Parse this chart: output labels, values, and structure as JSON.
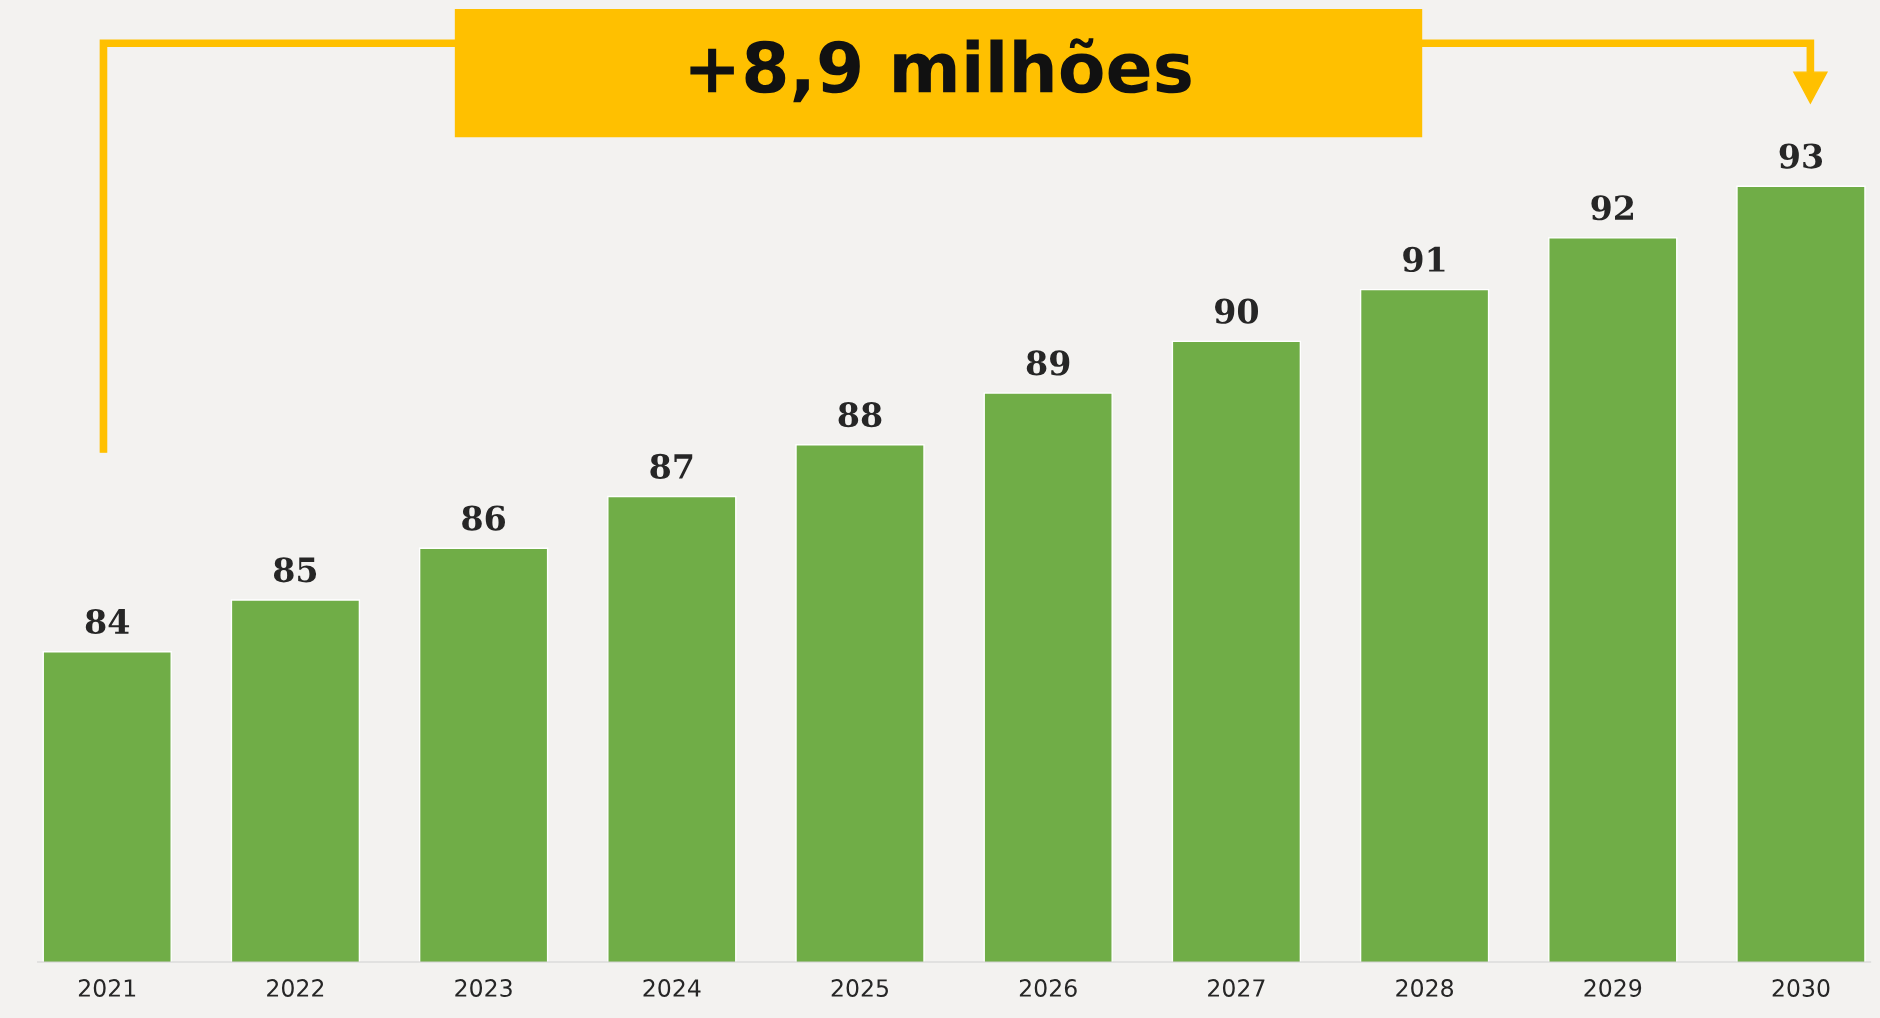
{
  "chart_data": {
    "type": "bar",
    "categories": [
      "2021",
      "2022",
      "2023",
      "2024",
      "2025",
      "2026",
      "2027",
      "2028",
      "2029",
      "2030"
    ],
    "values": [
      84,
      85,
      86,
      87,
      88,
      89,
      90,
      91,
      92,
      93
    ],
    "color": "#70ad47",
    "data_labels": true,
    "ylim": [
      78,
      96.6
    ],
    "tick_labels": "x",
    "grid": false,
    "legend": false,
    "annotations": [
      "+8,9 milhões"
    ]
  }
}
